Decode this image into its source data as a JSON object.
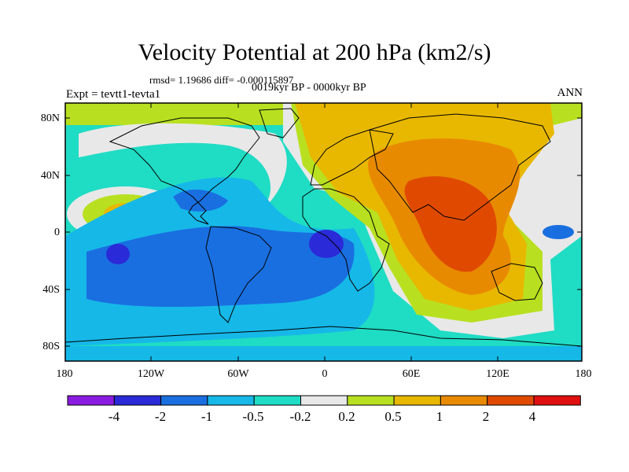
{
  "title": "Velocity Potential at 200 hPa (km2/s)",
  "stats": "rmsd= 1.19686 diff= -0.000115897",
  "experiment": "Expt = tevtt1-tevta1",
  "period": "0019kyr BP - 0000kyr BP",
  "season": "ANN",
  "lat_labels": [
    "80N",
    "40N",
    "0",
    "40S",
    "80S"
  ],
  "lon_labels": [
    "180",
    "120W",
    "60W",
    "0",
    "60E",
    "120E",
    "180"
  ],
  "colorbar": {
    "labels": [
      "-4",
      "-2",
      "-1",
      "-0.5",
      "-0.2",
      "0.2",
      "0.5",
      "1",
      "2",
      "4"
    ],
    "colors": [
      "#8a1be0",
      "#2a2ad8",
      "#1a6fe0",
      "#16b8e8",
      "#1fdcc4",
      "#e8e8e8",
      "#b8e020",
      "#e8b800",
      "#e88a00",
      "#e04a00",
      "#e01010"
    ]
  }
}
